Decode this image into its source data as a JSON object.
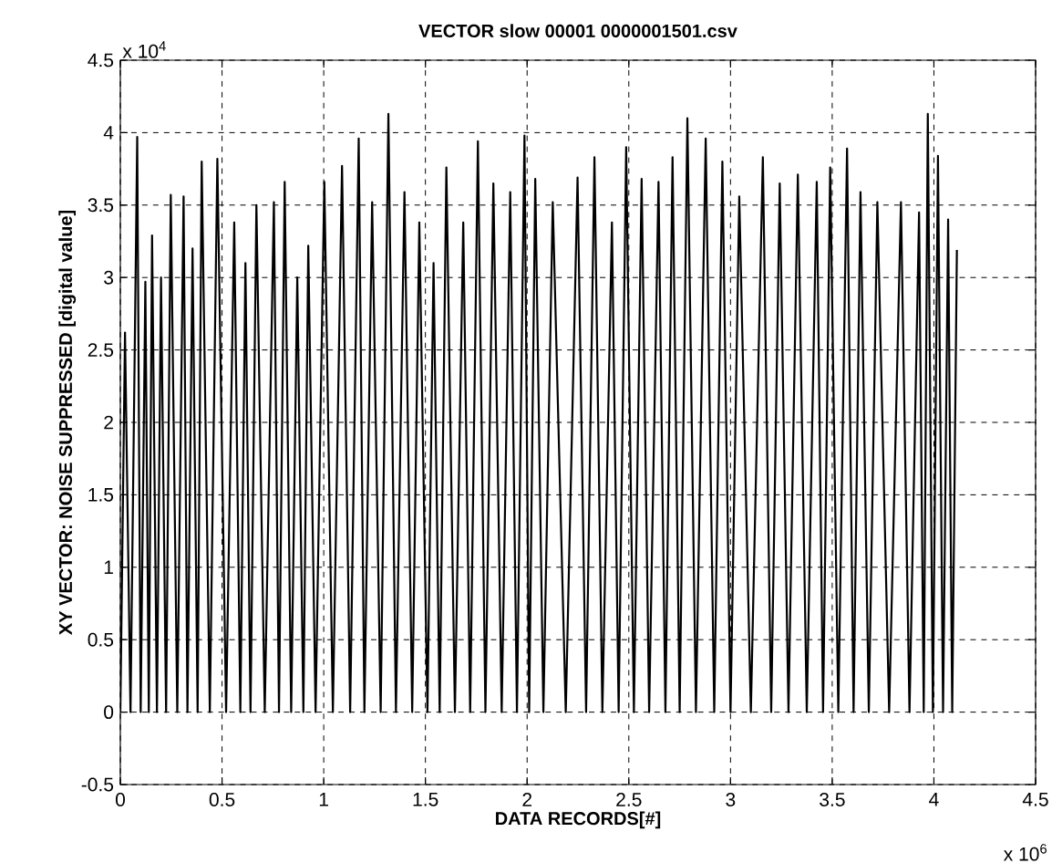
{
  "chart_data": {
    "type": "line",
    "title": "VECTOR slow 00001 0000001501.csv",
    "xlabel": "DATA RECORDS[#]",
    "ylabel": "XY VECTOR: NOISE SUPPRESSED [digital value]",
    "annotations": [
      "x 10$^{4}$",
      "x 10$^{6}$"
    ],
    "x": [
      0,
      0.023,
      0.05,
      0.083,
      0.1,
      0.123,
      0.14,
      0.156,
      0.18,
      0.2,
      0.225,
      0.248,
      0.28,
      0.311,
      0.33,
      0.355,
      0.38,
      0.4,
      0.44,
      0.477,
      0.52,
      0.56,
      0.59,
      0.615,
      0.64,
      0.669,
      0.71,
      0.755,
      0.78,
      0.808,
      0.84,
      0.87,
      0.9,
      0.924,
      0.96,
      1.003,
      1.045,
      1.09,
      1.13,
      1.172,
      1.2,
      1.238,
      1.28,
      1.318,
      1.355,
      1.397,
      1.435,
      1.47,
      1.51,
      1.54,
      1.57,
      1.603,
      1.645,
      1.686,
      1.72,
      1.758,
      1.795,
      1.834,
      1.875,
      1.917,
      1.95,
      1.987,
      2.01,
      2.04,
      2.08,
      2.126,
      2.19,
      2.248,
      2.29,
      2.331,
      2.37,
      2.417,
      2.45,
      2.487,
      2.525,
      2.563,
      2.6,
      2.646,
      2.68,
      2.715,
      2.75,
      2.788,
      2.83,
      2.878,
      2.92,
      2.96,
      3.0,
      3.043,
      3.1,
      3.159,
      3.2,
      3.242,
      3.285,
      3.331,
      3.375,
      3.424,
      3.455,
      3.49,
      3.53,
      3.573,
      3.605,
      3.639,
      3.68,
      3.722,
      3.78,
      3.838,
      3.88,
      3.927,
      3.95,
      3.97,
      3.995,
      4.02,
      4.045,
      4.07,
      4.09,
      4.113
    ],
    "values": [
      0,
      2.62,
      0,
      3.97,
      0,
      2.97,
      0,
      3.29,
      0,
      3.0,
      0,
      3.57,
      0,
      3.56,
      0,
      3.2,
      0,
      3.8,
      0,
      3.82,
      0,
      3.38,
      0,
      3.1,
      0,
      3.5,
      0,
      3.52,
      0,
      3.66,
      0,
      3.0,
      0,
      3.22,
      0,
      3.66,
      0,
      3.77,
      0,
      3.96,
      0,
      3.52,
      0,
      4.13,
      0,
      3.59,
      0,
      3.38,
      0,
      3.1,
      0,
      3.76,
      0,
      3.38,
      0,
      3.94,
      0,
      3.65,
      0,
      3.59,
      0,
      3.98,
      0,
      3.68,
      0,
      3.52,
      0,
      3.69,
      0,
      3.83,
      0,
      3.38,
      0,
      3.9,
      0,
      3.68,
      0,
      3.66,
      0,
      3.83,
      0,
      4.1,
      0,
      3.96,
      0,
      3.8,
      0,
      3.56,
      0,
      3.83,
      0,
      3.65,
      0,
      3.71,
      0,
      3.66,
      0,
      3.76,
      0,
      3.89,
      0,
      3.59,
      0,
      3.52,
      0,
      3.52,
      0,
      3.45,
      0,
      4.13,
      0,
      3.84,
      0,
      3.4,
      0,
      3.19
    ],
    "color": "#000000",
    "xlim": [
      0,
      4.5
    ],
    "xticks": [
      0,
      0.5,
      1,
      1.5,
      2,
      2.5,
      3,
      3.5,
      4,
      4.5
    ],
    "ylim": [
      -0.5,
      4.5
    ],
    "yticks": [
      -0.5,
      0,
      0.5,
      1,
      1.5,
      2,
      2.5,
      3,
      3.5,
      4,
      4.5
    ],
    "grid": true
  }
}
